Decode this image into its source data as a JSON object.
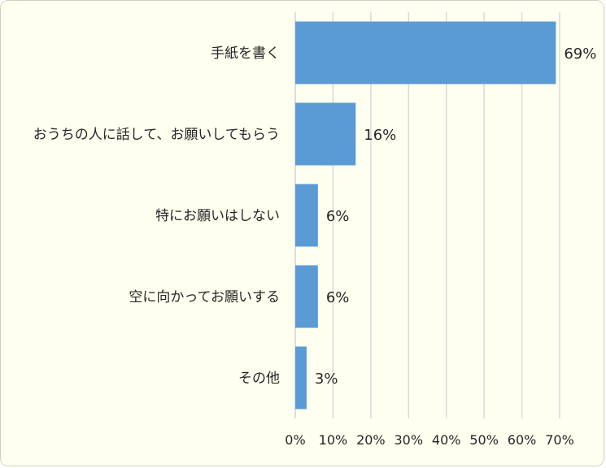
{
  "colors": {
    "bar": "#5b9bd5",
    "background": "#fffff0",
    "gridline": "#d9d9d9",
    "text": "#262626"
  },
  "chart_data": {
    "type": "bar",
    "orientation": "horizontal",
    "categories": [
      "手紙を書く",
      "おうちの人に話して、お願いしてもらう",
      "特にお願いはしない",
      "空に向かってお願いする",
      "その他"
    ],
    "values": [
      69,
      16,
      6,
      6,
      3
    ],
    "data_labels": [
      "69%",
      "16%",
      "6%",
      "6%",
      "3%"
    ],
    "xlim": [
      0,
      70
    ],
    "xticks": [
      0,
      10,
      20,
      30,
      40,
      50,
      60,
      70
    ],
    "xtick_labels": [
      "0%",
      "10%",
      "20%",
      "30%",
      "40%",
      "50%",
      "60%",
      "70%"
    ],
    "unit": "%",
    "grid": true,
    "legend": "none"
  }
}
